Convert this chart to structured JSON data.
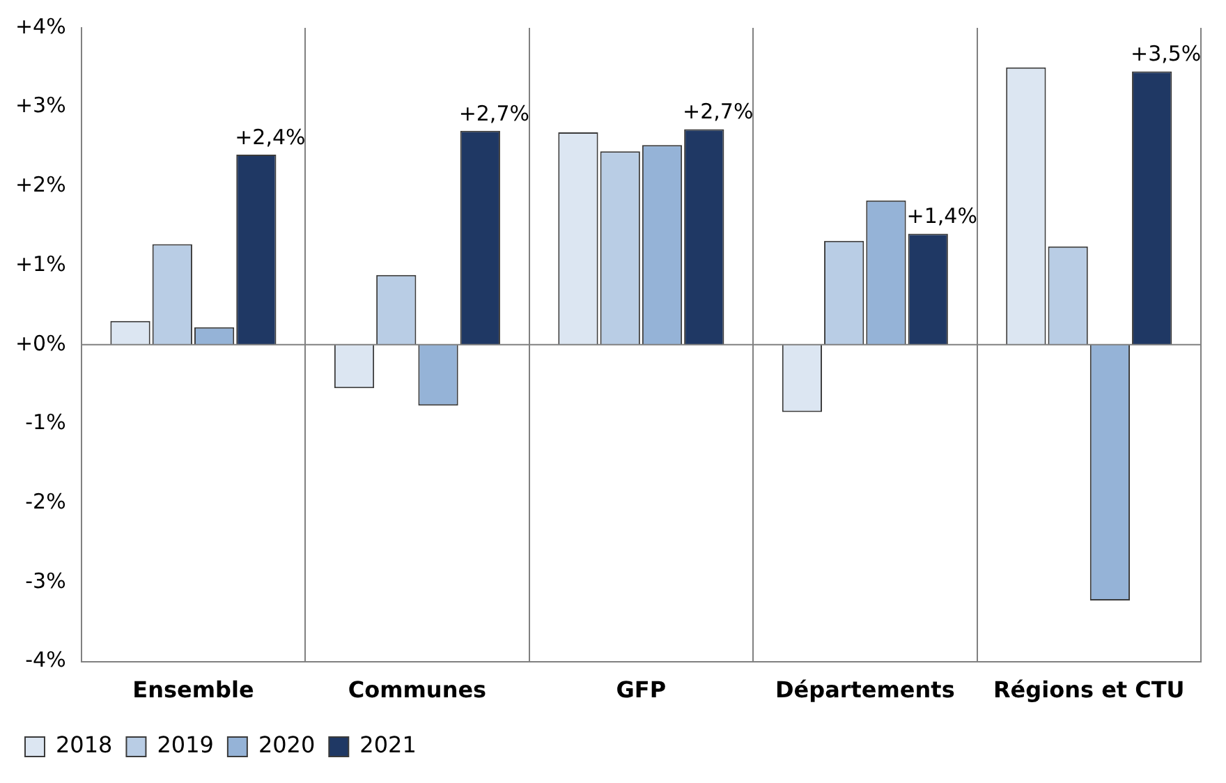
{
  "chart_data": {
    "type": "bar",
    "categories": [
      "Ensemble",
      "Communes",
      "GFP",
      "Départements",
      "Régions et CTU"
    ],
    "series": [
      {
        "name": "2018",
        "color": "#dce6f2",
        "values": [
          0.3,
          -0.55,
          2.68,
          -0.85,
          3.5
        ]
      },
      {
        "name": "2019",
        "color": "#b9cde5",
        "values": [
          1.27,
          0.88,
          2.44,
          1.31,
          1.24
        ]
      },
      {
        "name": "2020",
        "color": "#95b3d7",
        "values": [
          0.22,
          -0.77,
          2.52,
          1.82,
          -3.23
        ]
      },
      {
        "name": "2021",
        "color": "#1f3864",
        "values": [
          2.4,
          2.7,
          2.72,
          1.4,
          3.45
        ],
        "value_labels": [
          "+2,4%",
          "+2,7%",
          "+2,7%",
          "+1,4%",
          "+3,5%"
        ]
      }
    ],
    "ylim": [
      -4,
      4
    ],
    "yticks": [
      {
        "value": -4,
        "label": "-4%"
      },
      {
        "value": -3,
        "label": "-3%"
      },
      {
        "value": -2,
        "label": "-2%"
      },
      {
        "value": -1,
        "label": "-1%"
      },
      {
        "value": 0,
        "label": "+0%"
      },
      {
        "value": 1,
        "label": "+1%"
      },
      {
        "value": 2,
        "label": "+2%"
      },
      {
        "value": 3,
        "label": "+3%"
      },
      {
        "value": 4,
        "label": "+4%"
      }
    ],
    "ref_lines": [
      {
        "axis": "y",
        "value": 0,
        "color": "#808080"
      }
    ],
    "grid": "x",
    "legend": "bottom left"
  }
}
